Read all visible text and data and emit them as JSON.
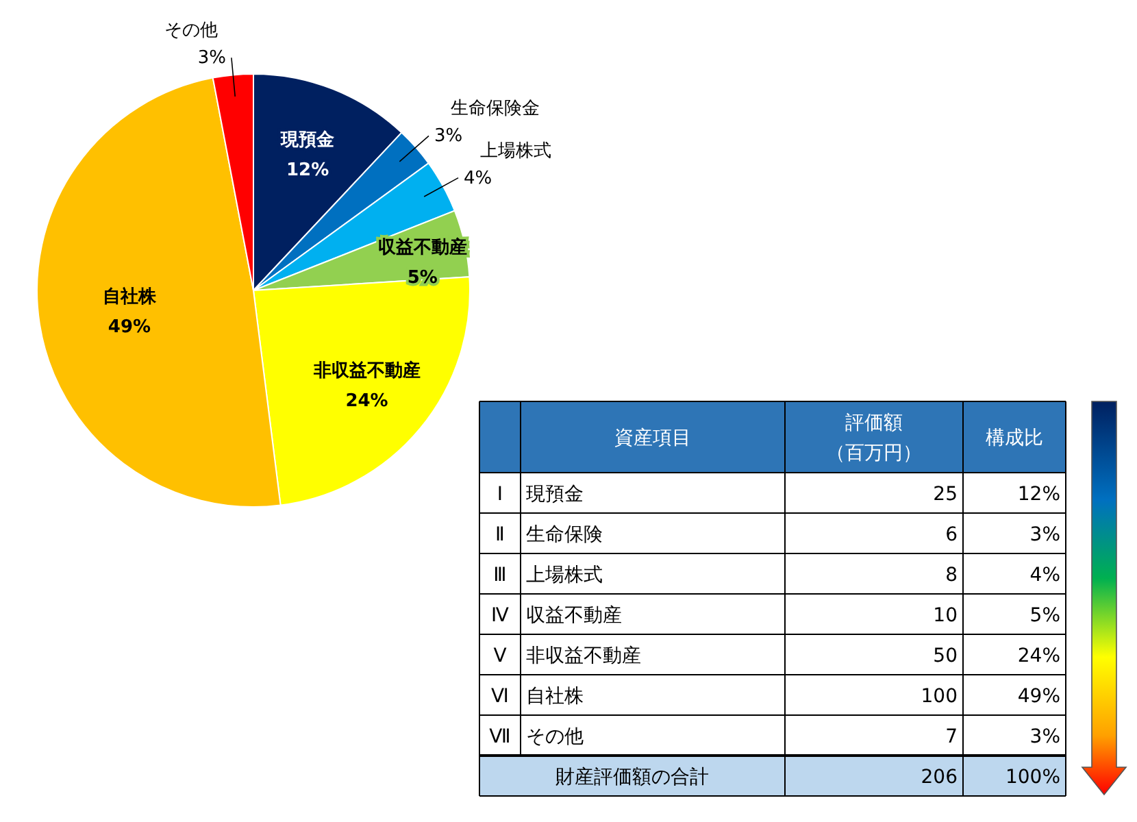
{
  "chart_data": [
    {
      "type": "pie",
      "categories": [
        "現預金",
        "生命保険金",
        "上場株式",
        "収益不動産",
        "非収益不動産",
        "自社株",
        "その他"
      ],
      "values": [
        12,
        3,
        4,
        5,
        24,
        49,
        3
      ],
      "colors": [
        "#002060",
        "#0070c0",
        "#00b0f0",
        "#92d050",
        "#ffff00",
        "#ffc000",
        "#ff0000"
      ],
      "value_labels": [
        "12%",
        "3%",
        "4%",
        "5%",
        "24%",
        "49%",
        "3%"
      ]
    },
    {
      "type": "other",
      "xlabel": "資産項目",
      "categories": [
        "現預金",
        "生命保険",
        "上場株式",
        "収益不動産",
        "非収益不動産",
        "自社株",
        "その他",
        "財産評価額の合計"
      ],
      "annotations": [
        "Ⅰ",
        "Ⅱ",
        "Ⅲ",
        "Ⅳ",
        "Ⅴ",
        "Ⅵ",
        "Ⅶ"
      ],
      "series": [
        {
          "name": "評価額（百万円）",
          "values": [
            25,
            6,
            8,
            10,
            50,
            100,
            7,
            206
          ]
        },
        {
          "name": "構成比",
          "values": [
            12,
            3,
            4,
            5,
            24,
            49,
            3,
            100
          ],
          "value_labels": [
            "12%",
            "3%",
            "4%",
            "5%",
            "24%",
            "49%",
            "3%",
            "100%"
          ]
        }
      ],
      "data_labels": true
    }
  ]
}
